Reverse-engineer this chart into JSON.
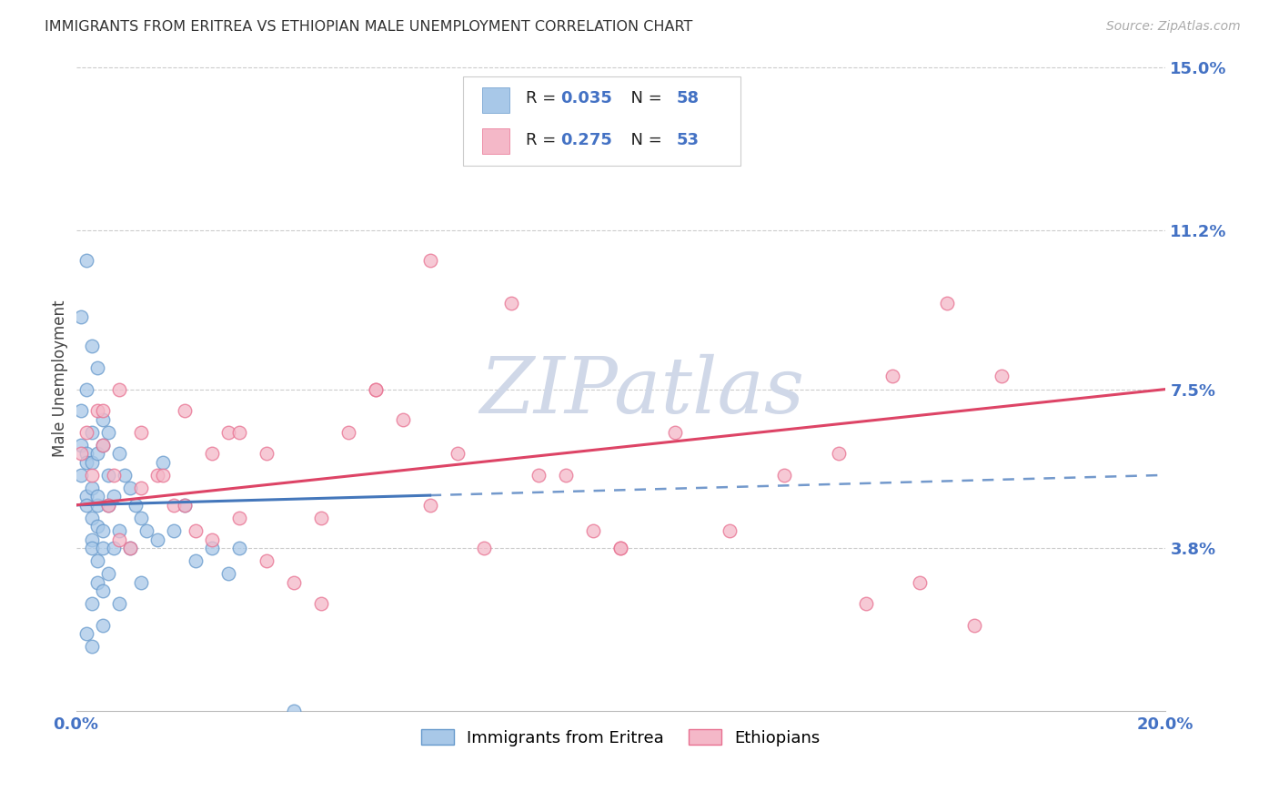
{
  "title": "IMMIGRANTS FROM ERITREA VS ETHIOPIAN MALE UNEMPLOYMENT CORRELATION CHART",
  "source_text": "Source: ZipAtlas.com",
  "ylabel": "Male Unemployment",
  "xmin": 0.0,
  "xmax": 0.2,
  "ymin": 0.0,
  "ymax": 0.155,
  "yticks": [
    0.038,
    0.075,
    0.112,
    0.15
  ],
  "ytick_labels": [
    "3.8%",
    "7.5%",
    "11.2%",
    "15.0%"
  ],
  "legend1_R": "0.035",
  "legend1_N": "58",
  "legend2_R": "0.275",
  "legend2_N": "53",
  "legend1_label": "Immigrants from Eritrea",
  "legend2_label": "Ethiopians",
  "blue_fill": "#a8c8e8",
  "blue_edge": "#6699cc",
  "pink_fill": "#f4b8c8",
  "pink_edge": "#e87090",
  "blue_line_color": "#4477bb",
  "pink_line_color": "#dd4466",
  "watermark_color": "#d0d8e8",
  "blue_scatter_x": [
    0.001,
    0.001,
    0.001,
    0.002,
    0.002,
    0.002,
    0.002,
    0.002,
    0.003,
    0.003,
    0.003,
    0.003,
    0.003,
    0.003,
    0.004,
    0.004,
    0.004,
    0.004,
    0.004,
    0.005,
    0.005,
    0.005,
    0.005,
    0.006,
    0.006,
    0.006,
    0.007,
    0.007,
    0.008,
    0.008,
    0.009,
    0.01,
    0.01,
    0.011,
    0.012,
    0.013,
    0.015,
    0.016,
    0.018,
    0.02,
    0.022,
    0.025,
    0.001,
    0.002,
    0.003,
    0.004,
    0.003,
    0.004,
    0.005,
    0.006,
    0.002,
    0.003,
    0.005,
    0.008,
    0.012,
    0.03,
    0.028,
    0.04
  ],
  "blue_scatter_y": [
    0.062,
    0.07,
    0.055,
    0.05,
    0.06,
    0.075,
    0.058,
    0.048,
    0.065,
    0.052,
    0.045,
    0.04,
    0.038,
    0.058,
    0.043,
    0.06,
    0.048,
    0.035,
    0.05,
    0.042,
    0.038,
    0.068,
    0.062,
    0.065,
    0.055,
    0.048,
    0.038,
    0.05,
    0.06,
    0.042,
    0.055,
    0.052,
    0.038,
    0.048,
    0.045,
    0.042,
    0.04,
    0.058,
    0.042,
    0.048,
    0.035,
    0.038,
    0.092,
    0.105,
    0.085,
    0.08,
    0.025,
    0.03,
    0.028,
    0.032,
    0.018,
    0.015,
    0.02,
    0.025,
    0.03,
    0.038,
    0.032,
    0.0
  ],
  "pink_scatter_x": [
    0.001,
    0.002,
    0.003,
    0.004,
    0.005,
    0.006,
    0.007,
    0.008,
    0.01,
    0.012,
    0.015,
    0.018,
    0.02,
    0.022,
    0.025,
    0.028,
    0.03,
    0.035,
    0.04,
    0.045,
    0.05,
    0.055,
    0.06,
    0.065,
    0.07,
    0.08,
    0.09,
    0.1,
    0.11,
    0.12,
    0.13,
    0.14,
    0.005,
    0.008,
    0.012,
    0.016,
    0.02,
    0.025,
    0.03,
    0.035,
    0.045,
    0.055,
    0.065,
    0.075,
    0.085,
    0.095,
    0.1,
    0.15,
    0.16,
    0.17,
    0.165,
    0.145,
    0.155
  ],
  "pink_scatter_y": [
    0.06,
    0.065,
    0.055,
    0.07,
    0.062,
    0.048,
    0.055,
    0.04,
    0.038,
    0.052,
    0.055,
    0.048,
    0.07,
    0.042,
    0.06,
    0.065,
    0.045,
    0.035,
    0.03,
    0.045,
    0.065,
    0.075,
    0.068,
    0.105,
    0.06,
    0.095,
    0.055,
    0.038,
    0.065,
    0.042,
    0.055,
    0.06,
    0.07,
    0.075,
    0.065,
    0.055,
    0.048,
    0.04,
    0.065,
    0.06,
    0.025,
    0.075,
    0.048,
    0.038,
    0.055,
    0.042,
    0.038,
    0.078,
    0.095,
    0.078,
    0.02,
    0.025,
    0.03
  ]
}
